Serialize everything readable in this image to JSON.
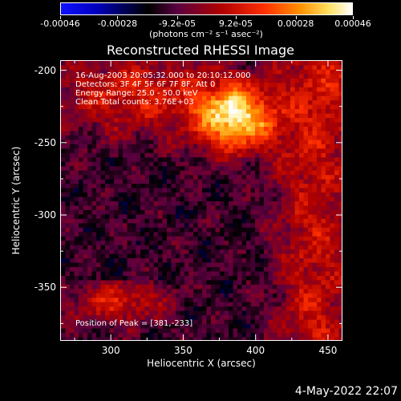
{
  "colorbar": {
    "gradient": [
      "#1010ff",
      "#0000c0",
      "#000000",
      "#5a0040",
      "#b00000",
      "#ff3000",
      "#ff9000",
      "#ffe060",
      "#ffffff"
    ],
    "ticks": [
      {
        "value": -0.00046,
        "label": "-0.00046"
      },
      {
        "value": -0.00028,
        "label": "-0.00028"
      },
      {
        "value": -9.2e-05,
        "label": "-9.2e-05"
      },
      {
        "value": 9.2e-05,
        "label": "9.2e-05"
      },
      {
        "value": 0.00028,
        "label": "0.00028"
      },
      {
        "value": 0.00046,
        "label": "0.00046"
      }
    ],
    "range": [
      -0.00046,
      0.00046
    ],
    "units": "(photons cm⁻² s⁻¹ asec⁻²)"
  },
  "chart_data": {
    "type": "heatmap",
    "title": "Reconstructed RHESSI Image",
    "xlabel": "Heliocentric X (arcsec)",
    "ylabel": "Heliocentric Y (arcsec)",
    "xlim": [
      265,
      460
    ],
    "ylim": [
      -387,
      -193
    ],
    "xticks": [
      300,
      350,
      400,
      450
    ],
    "yticks": [
      -200,
      -250,
      -300,
      -350
    ],
    "peak": [
      381,
      -233
    ],
    "annotations": [
      "16-Aug-2003 20:05:32.000 to 20:10:12.000",
      "Detectors: 3F 4F 5F 6F 7F 8F, Att 0",
      "Energy Range: 25.0 - 50.0 keV",
      "Clean     Total counts: 3.76E+03"
    ],
    "peak_label": "Position of Peak = [381,-233]"
  },
  "footer": {
    "date": "4-May-2022 22:07"
  }
}
